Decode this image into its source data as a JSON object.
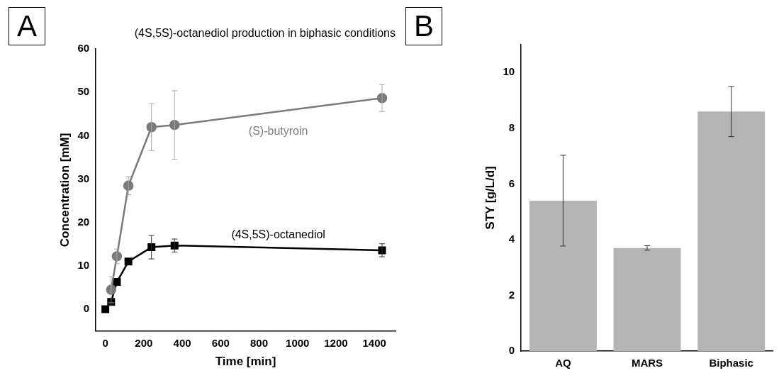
{
  "chart_data": [
    {
      "type": "line",
      "title": "(4S,5S)-octanediol production in biphasic conditions",
      "xlabel": "Time [min]",
      "ylabel": "Concentration [mM]",
      "xlim": [
        -50,
        1510
      ],
      "xticks": [
        0,
        200,
        400,
        600,
        800,
        1000,
        1200,
        1400
      ],
      "ylim": [
        -5,
        60
      ],
      "yticks": [
        0,
        10,
        20,
        30,
        40,
        50,
        60
      ],
      "grid": false,
      "legend": false,
      "annotations": [
        "A"
      ],
      "series": [
        {
          "name": "(S)-butyroin",
          "color": "#7a7a7a",
          "marker": "circle",
          "x": [
            30,
            60,
            120,
            240,
            360,
            1440
          ],
          "values": [
            4.5,
            12.2,
            28.5,
            42,
            42.5,
            48.7
          ],
          "errors": [
            3,
            1.7,
            2.1,
            5.4,
            7.9,
            3.1
          ]
        },
        {
          "name": "(4S,5S)-octanediol",
          "color": "#000000",
          "marker": "square",
          "x": [
            0,
            30,
            60,
            120,
            240,
            360,
            1440
          ],
          "values": [
            0,
            1.7,
            6.3,
            11,
            14.3,
            14.7,
            13.6
          ],
          "errors": [
            null,
            0.8,
            null,
            null,
            2.7,
            1.5,
            1.5
          ]
        }
      ]
    },
    {
      "type": "bar",
      "ylabel": "STY [g/L/d]",
      "categories": [
        "AQ",
        "MARS",
        "Biphasic"
      ],
      "values": [
        5.4,
        3.7,
        8.6
      ],
      "errors": [
        1.63,
        0.08,
        0.9
      ],
      "color": "#b4b4b4",
      "ylim": [
        0,
        11
      ],
      "yticks": [
        0,
        2,
        4,
        6,
        8,
        10
      ],
      "grid": false,
      "legend": false,
      "annotations": [
        "B"
      ]
    }
  ]
}
